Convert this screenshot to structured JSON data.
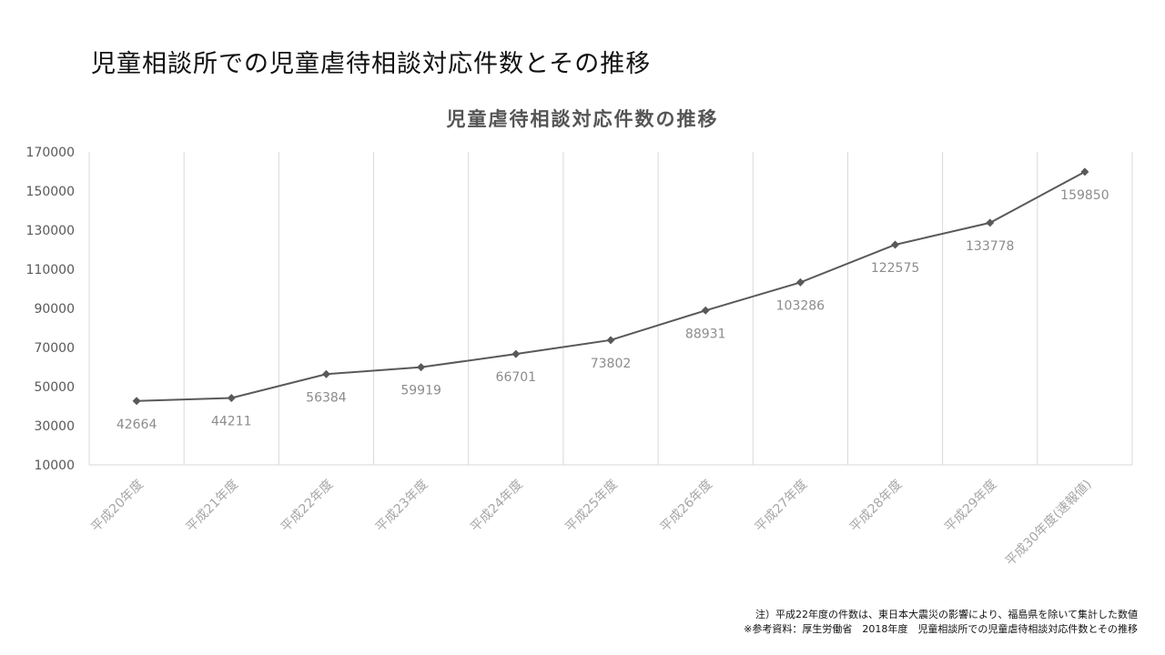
{
  "slide_title": "児童相談所での児童虐待相談対応件数とその推移",
  "footnotes": [
    "注）平成22年度の件数は、東日本大震災の影響により、福島県を除いて集計した数値",
    "※参考資料：厚生労働省　2018年度　児童相談所での児童虐待相談対応件数とその推移"
  ],
  "colors": {
    "line": "#595959",
    "grid": "#d9d9d9",
    "axis_text": "#595959",
    "tick_text_x": "#a6a6a6",
    "data_label": "#8c8c8c"
  },
  "chart_data": {
    "type": "line",
    "title": "児童虐待相談対応件数の推移",
    "xlabel": "",
    "ylabel": "",
    "ylim": [
      10000,
      170000
    ],
    "yticks": [
      10000,
      30000,
      50000,
      70000,
      90000,
      110000,
      130000,
      150000,
      170000
    ],
    "categories": [
      "平成20年度",
      "平成21年度",
      "平成22年度",
      "平成23年度",
      "平成24年度",
      "平成25年度",
      "平成26年度",
      "平成27年度",
      "平成28年度",
      "平成29年度",
      "平成30年度(速報値)"
    ],
    "series": [
      {
        "values": [
          42664,
          44211,
          56384,
          59919,
          66701,
          73802,
          88931,
          103286,
          122575,
          133778,
          159850
        ],
        "marker": "diamond"
      }
    ],
    "data_labels": [
      "42664",
      "44211",
      "56384",
      "59919",
      "66701",
      "73802",
      "88931",
      "103286",
      "122575",
      "133778",
      "159850"
    ],
    "grid": "vertical",
    "legend": "none"
  }
}
